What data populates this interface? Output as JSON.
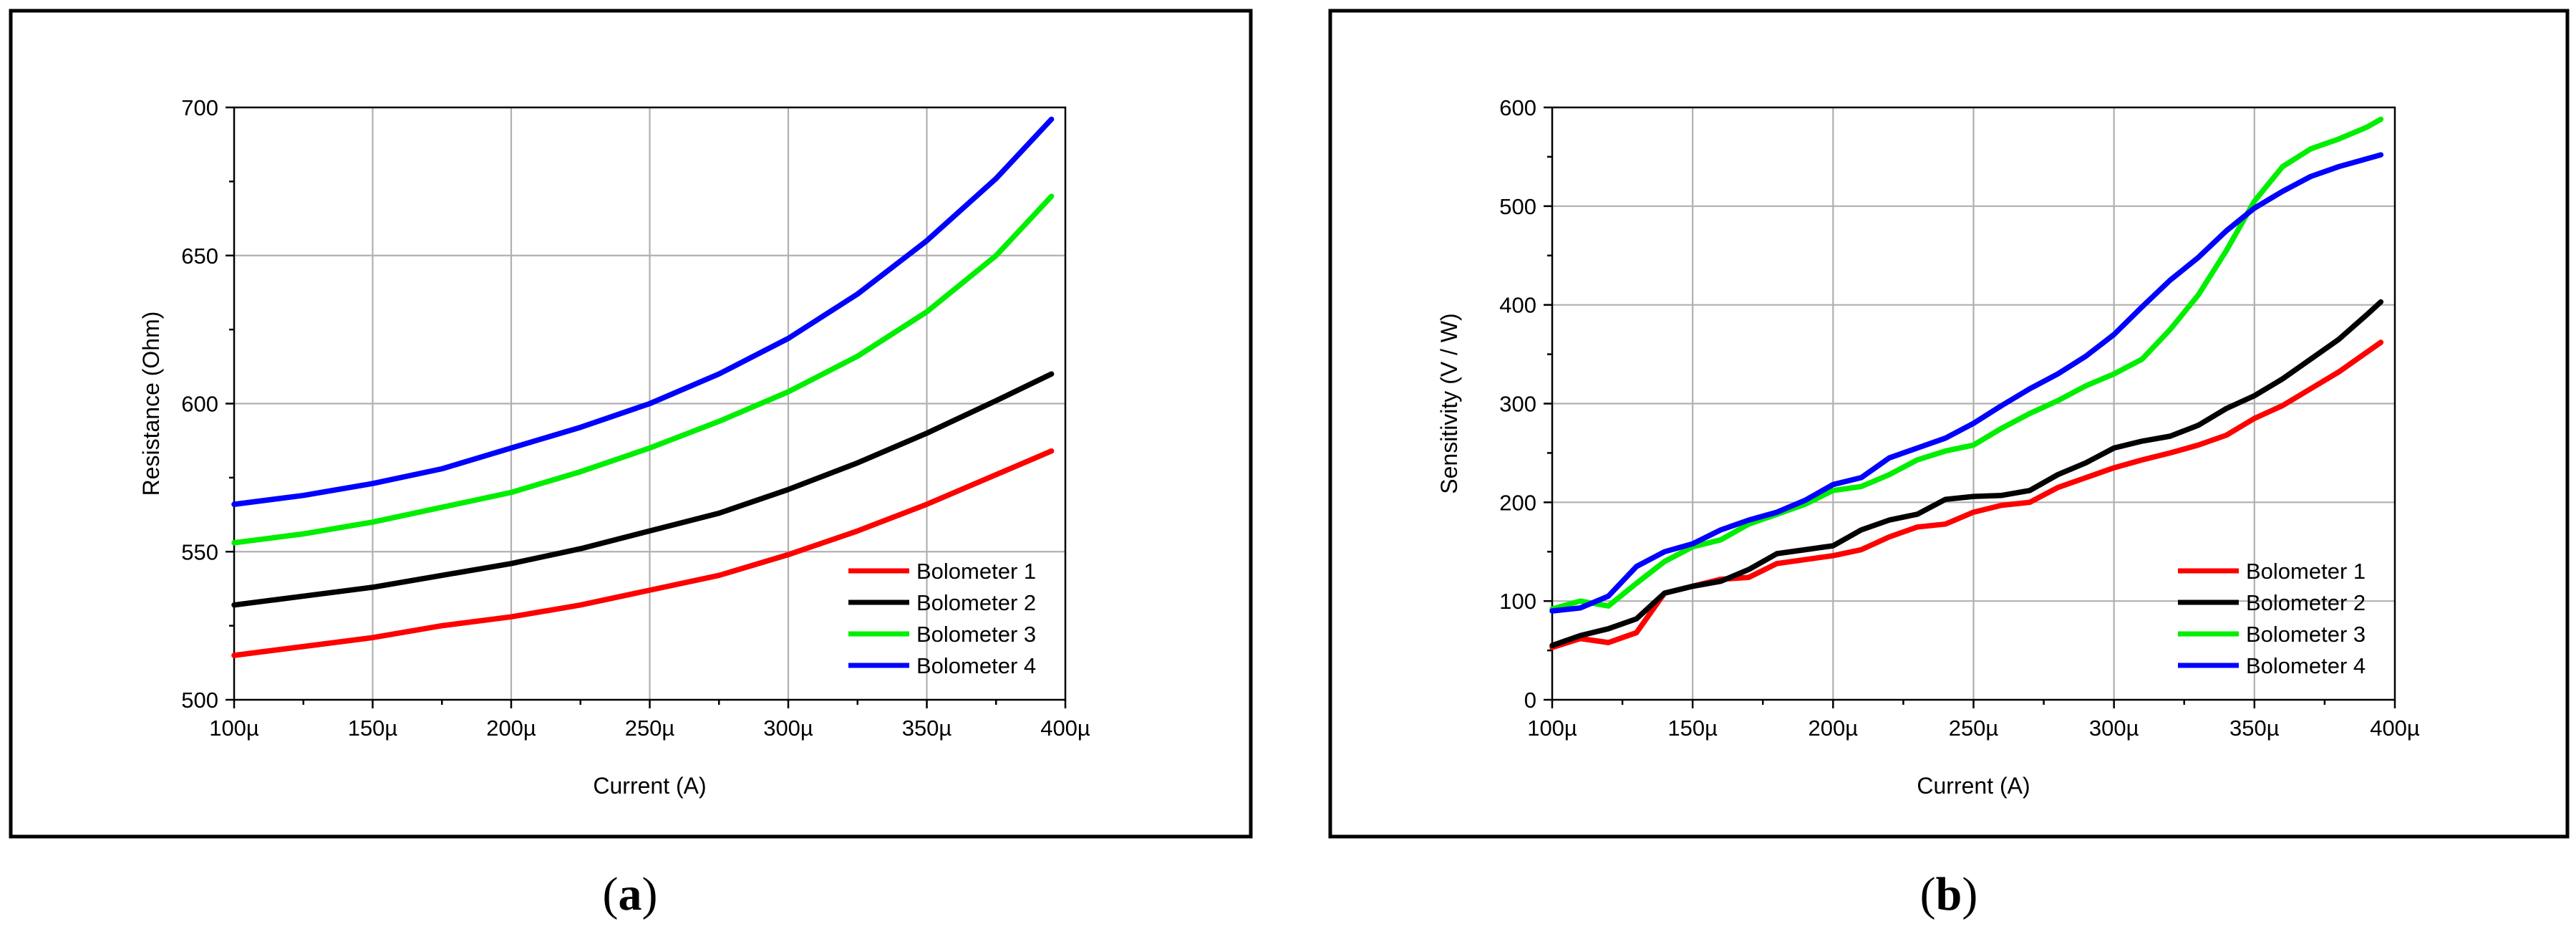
{
  "chart_data": [
    {
      "type": "line",
      "caption": "a",
      "title": "",
      "xlabel": "Current (A)",
      "ylabel": "Resistance (Ohm)",
      "xlim": [
        100,
        400
      ],
      "ylim": [
        500,
        700
      ],
      "xticks": [
        100,
        150,
        200,
        250,
        300,
        350,
        400
      ],
      "xtick_labels": [
        "100µ",
        "150µ",
        "200µ",
        "250µ",
        "300µ",
        "350µ",
        "400µ"
      ],
      "yticks": [
        500,
        550,
        600,
        650,
        700
      ],
      "ytick_labels": [
        "500",
        "550",
        "600",
        "650",
        "700"
      ],
      "grid": true,
      "legend_position": "bottom-right",
      "x": [
        100,
        125,
        150,
        175,
        200,
        225,
        250,
        275,
        300,
        325,
        350,
        375,
        395
      ],
      "series": [
        {
          "name": "Bolometer 1",
          "color": "#ff0000",
          "values": [
            515,
            518,
            521,
            525,
            528,
            532,
            537,
            542,
            549,
            557,
            566,
            576,
            584
          ]
        },
        {
          "name": "Bolometer 2",
          "color": "#000000",
          "values": [
            532,
            535,
            538,
            542,
            546,
            551,
            557,
            563,
            571,
            580,
            590,
            601,
            610
          ]
        },
        {
          "name": "Bolometer 3",
          "color": "#00ee00",
          "values": [
            553,
            556,
            560,
            565,
            570,
            577,
            585,
            594,
            604,
            616,
            631,
            650,
            670
          ]
        },
        {
          "name": "Bolometer 4",
          "color": "#0000ff",
          "values": [
            566,
            569,
            573,
            578,
            585,
            592,
            600,
            610,
            622,
            637,
            655,
            676,
            696
          ]
        }
      ]
    },
    {
      "type": "line",
      "caption": "b",
      "title": "",
      "xlabel": "Current (A)",
      "ylabel": "Sensitivity (V / W)",
      "xlim": [
        100,
        400
      ],
      "ylim": [
        0,
        600
      ],
      "xticks": [
        100,
        150,
        200,
        250,
        300,
        350,
        400
      ],
      "xtick_labels": [
        "100µ",
        "150µ",
        "200µ",
        "250µ",
        "300µ",
        "350µ",
        "400µ"
      ],
      "yticks": [
        0,
        100,
        200,
        300,
        400,
        500,
        600
      ],
      "ytick_labels": [
        "0",
        "100",
        "200",
        "300",
        "400",
        "500",
        "600"
      ],
      "grid": true,
      "legend_position": "bottom-right",
      "x": [
        100,
        110,
        120,
        130,
        140,
        150,
        160,
        170,
        180,
        190,
        200,
        210,
        220,
        230,
        240,
        250,
        260,
        270,
        280,
        290,
        300,
        310,
        320,
        330,
        340,
        350,
        360,
        370,
        380,
        390,
        395
      ],
      "series": [
        {
          "name": "Bolometer 1",
          "color": "#ff0000",
          "values": [
            53,
            62,
            58,
            68,
            108,
            115,
            122,
            124,
            138,
            142,
            146,
            152,
            165,
            175,
            178,
            190,
            197,
            200,
            215,
            225,
            235,
            243,
            250,
            258,
            268,
            285,
            298,
            315,
            332,
            352,
            362
          ]
        },
        {
          "name": "Bolometer 2",
          "color": "#000000",
          "values": [
            55,
            65,
            72,
            82,
            108,
            115,
            120,
            132,
            148,
            152,
            156,
            172,
            182,
            188,
            203,
            206,
            207,
            212,
            228,
            240,
            255,
            262,
            267,
            278,
            295,
            308,
            325,
            345,
            365,
            390,
            403
          ]
        },
        {
          "name": "Bolometer 3",
          "color": "#00ee00",
          "values": [
            92,
            100,
            95,
            118,
            140,
            155,
            162,
            178,
            188,
            198,
            212,
            216,
            228,
            243,
            252,
            258,
            275,
            290,
            303,
            318,
            330,
            345,
            375,
            410,
            455,
            505,
            540,
            558,
            568,
            580,
            588
          ]
        },
        {
          "name": "Bolometer 4",
          "color": "#0000ff",
          "values": [
            90,
            93,
            105,
            135,
            150,
            158,
            172,
            182,
            190,
            202,
            218,
            225,
            245,
            255,
            265,
            280,
            298,
            315,
            330,
            348,
            370,
            398,
            425,
            448,
            475,
            498,
            515,
            530,
            540,
            548,
            552
          ]
        }
      ]
    }
  ]
}
